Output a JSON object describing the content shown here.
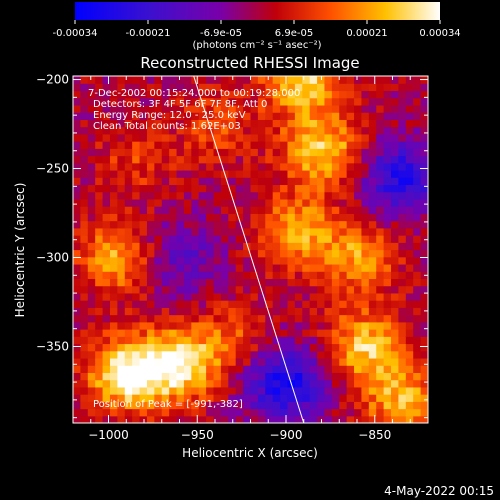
{
  "colorbar": {
    "ticks": [
      "-0.00034",
      "-0.00021",
      "-6.9e-05",
      "6.9e-05",
      "0.00021",
      "0.00034"
    ],
    "units": "(photons cm⁻² s⁻¹ asec⁻²)"
  },
  "annotations": {
    "time_range": "7-Dec-2002 00:15:24.000 to 00:19:28.000",
    "detectors": "Detectors: 3F 4F 5F 6F 7F 8F, Att 0",
    "energy": "Energy Range: 12.0 - 25.0 keV",
    "clean": "Clean    Total counts: 1.62E+03",
    "peak": "Position of Peak = [-991,-382]"
  },
  "footer_date": "4-May-2022 00:15",
  "colors": {
    "low": "#0000ff",
    "mid": "#7a00a8",
    "high": "#ffffff"
  },
  "chart_data": {
    "type": "heatmap",
    "title": "Reconstructed RHESSI Image",
    "xlabel": "Heliocentric X (arcsec)",
    "ylabel": "Heliocentric Y (arcsec)",
    "xlim": [
      -1020,
      -820
    ],
    "ylim": [
      -393,
      -198
    ],
    "x_ticks": [
      -1000,
      -950,
      -900,
      -850
    ],
    "y_ticks": [
      -200,
      -250,
      -300,
      -350
    ],
    "clim": [
      -0.00034,
      0.00034
    ],
    "colormap": "rhessi: blue-purple-red-orange-yellow-white",
    "limb_line": [
      [
        -952,
        -198
      ],
      [
        -890,
        -393
      ]
    ],
    "peak": [
      -991,
      -382
    ],
    "grid": false,
    "hotspots": [
      {
        "x": -990,
        "y": -365,
        "value": 0.00034
      },
      {
        "x": -960,
        "y": -360,
        "value": 0.0003
      },
      {
        "x": -995,
        "y": -300,
        "value": 0.00022
      },
      {
        "x": -890,
        "y": -200,
        "value": 0.00028
      },
      {
        "x": -880,
        "y": -240,
        "value": 0.00027
      },
      {
        "x": -895,
        "y": -285,
        "value": 0.00022
      },
      {
        "x": -860,
        "y": -300,
        "value": 0.0002
      },
      {
        "x": -855,
        "y": -350,
        "value": 0.00026
      },
      {
        "x": -835,
        "y": -380,
        "value": 0.00022
      },
      {
        "x": -930,
        "y": -345,
        "value": 0.00012
      },
      {
        "x": -985,
        "y": -245,
        "value": 0.0001
      },
      {
        "x": -940,
        "y": -225,
        "value": 0.00012
      }
    ],
    "coldspots": [
      {
        "x": -900,
        "y": -370,
        "value": -0.0003
      },
      {
        "x": -835,
        "y": -255,
        "value": -0.00026
      },
      {
        "x": -960,
        "y": -300,
        "value": -0.00014
      }
    ]
  }
}
